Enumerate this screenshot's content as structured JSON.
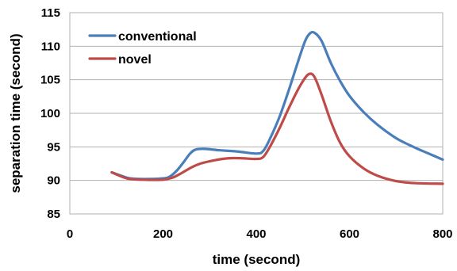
{
  "chart_data": {
    "type": "line",
    "title": "",
    "xlabel": "time (second)",
    "ylabel": "separation time (second)",
    "xlim": [
      0,
      800
    ],
    "ylim": [
      85,
      115
    ],
    "x_ticks": [
      0,
      200,
      400,
      600,
      800
    ],
    "y_ticks": [
      85,
      90,
      95,
      100,
      105,
      110,
      115
    ],
    "grid": "horizontal",
    "legend_position": "top-left",
    "series": [
      {
        "name": "conventional",
        "color": "#4a7ebb",
        "points": [
          [
            90,
            91.2
          ],
          [
            110,
            90.7
          ],
          [
            130,
            90.3
          ],
          [
            160,
            90.2
          ],
          [
            200,
            90.3
          ],
          [
            215,
            90.6
          ],
          [
            230,
            91.5
          ],
          [
            245,
            92.8
          ],
          [
            258,
            94.0
          ],
          [
            270,
            94.6
          ],
          [
            290,
            94.7
          ],
          [
            320,
            94.5
          ],
          [
            360,
            94.3
          ],
          [
            400,
            94.0
          ],
          [
            415,
            94.4
          ],
          [
            430,
            96.3
          ],
          [
            450,
            99.5
          ],
          [
            470,
            103.5
          ],
          [
            490,
            107.8
          ],
          [
            505,
            110.8
          ],
          [
            515,
            111.9
          ],
          [
            525,
            112.0
          ],
          [
            540,
            110.8
          ],
          [
            560,
            107.5
          ],
          [
            580,
            104.8
          ],
          [
            600,
            102.6
          ],
          [
            630,
            100.2
          ],
          [
            660,
            98.3
          ],
          [
            700,
            96.3
          ],
          [
            740,
            94.9
          ],
          [
            770,
            94.0
          ],
          [
            800,
            93.1
          ]
        ]
      },
      {
        "name": "novel",
        "color": "#be4b48",
        "points": [
          [
            90,
            91.2
          ],
          [
            110,
            90.6
          ],
          [
            130,
            90.2
          ],
          [
            160,
            90.1
          ],
          [
            200,
            90.1
          ],
          [
            220,
            90.4
          ],
          [
            240,
            91.1
          ],
          [
            260,
            91.9
          ],
          [
            280,
            92.5
          ],
          [
            310,
            93.0
          ],
          [
            340,
            93.3
          ],
          [
            370,
            93.3
          ],
          [
            400,
            93.2
          ],
          [
            415,
            93.5
          ],
          [
            430,
            95.1
          ],
          [
            450,
            97.8
          ],
          [
            470,
            100.8
          ],
          [
            490,
            103.6
          ],
          [
            505,
            105.3
          ],
          [
            515,
            105.9
          ],
          [
            525,
            105.4
          ],
          [
            540,
            102.8
          ],
          [
            560,
            98.8
          ],
          [
            580,
            95.6
          ],
          [
            600,
            93.6
          ],
          [
            630,
            91.8
          ],
          [
            660,
            90.7
          ],
          [
            700,
            89.9
          ],
          [
            740,
            89.6
          ],
          [
            800,
            89.5
          ]
        ]
      }
    ]
  }
}
